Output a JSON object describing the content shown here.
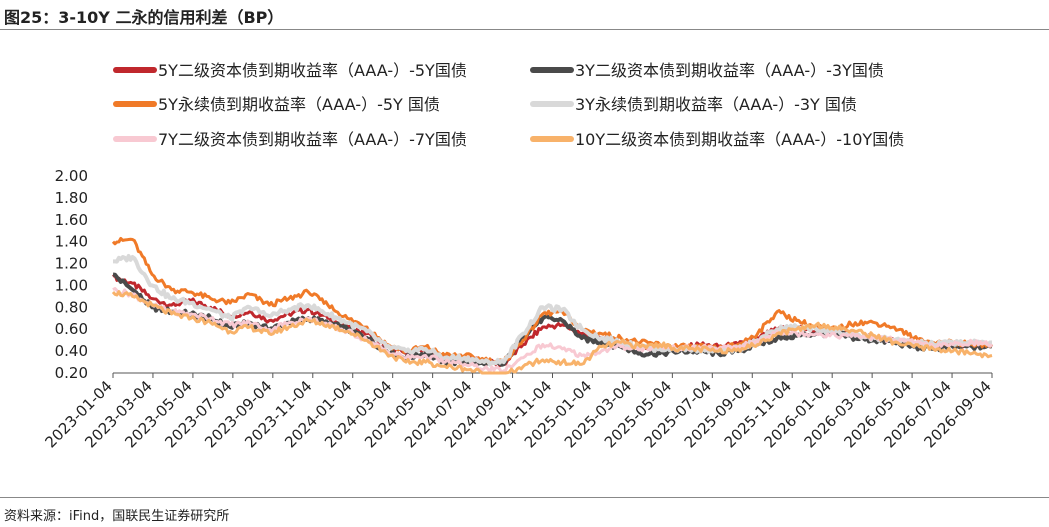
{
  "header": {
    "title": "图25：3-10Y 二永的信用利差（BP）"
  },
  "footer": {
    "source": "资料来源：iFind，国联民生证券研究所"
  },
  "chart_data": {
    "type": "line",
    "title": "图25：3-10Y 二永的信用利差（BP）",
    "xlabel": "",
    "ylabel": "",
    "ylim": [
      0.2,
      2.0
    ],
    "yticks": [
      "2.00",
      "1.80",
      "1.60",
      "1.40",
      "1.20",
      "1.00",
      "0.80",
      "0.60",
      "0.40",
      "0.20"
    ],
    "xticks": [
      "2023-01-04",
      "2023-03-04",
      "2023-05-04",
      "2023-07-04",
      "2023-09-04",
      "2023-11-04",
      "2024-01-04",
      "2024-03-04",
      "2024-05-04",
      "2024-07-04",
      "2024-09-04",
      "2024-11-04",
      "2025-01-04",
      "2025-03-04",
      "2025-05-04",
      "2025-07-04",
      "2025-09-04",
      "2025-11-04",
      "2026-01-04",
      "2026-03-04",
      "2026-05-04",
      "2026-07-04",
      "2026-09-04"
    ],
    "legend_position": "top",
    "series": [
      {
        "name": "5Y二级资本债到期收益率（AAA-）-5Y国债",
        "color": "#c0282d",
        "width": 3,
        "values": [
          1.08,
          1.02,
          0.88,
          0.82,
          0.86,
          0.8,
          0.72,
          0.76,
          0.68,
          0.74,
          0.78,
          0.7,
          0.62,
          0.56,
          0.44,
          0.38,
          0.42,
          0.34,
          0.34,
          0.3,
          0.28,
          0.46,
          0.62,
          0.64,
          0.56,
          0.52,
          0.48,
          0.44,
          0.42,
          0.42,
          0.46,
          0.44,
          0.46,
          0.52,
          0.6,
          0.62,
          0.58,
          0.56,
          0.54,
          0.52,
          0.5,
          0.48,
          0.46,
          0.46,
          0.46,
          0.46
        ]
      },
      {
        "name": "3Y二级资本债到期收益率（AAA-）-3Y国债",
        "color": "#4a4a4a",
        "width": 4,
        "values": [
          1.1,
          0.96,
          0.8,
          0.76,
          0.74,
          0.7,
          0.62,
          0.66,
          0.6,
          0.66,
          0.7,
          0.66,
          0.6,
          0.52,
          0.4,
          0.34,
          0.38,
          0.3,
          0.3,
          0.28,
          0.28,
          0.54,
          0.7,
          0.68,
          0.52,
          0.48,
          0.44,
          0.38,
          0.38,
          0.4,
          0.4,
          0.38,
          0.4,
          0.46,
          0.52,
          0.54,
          0.56,
          0.56,
          0.52,
          0.5,
          0.48,
          0.44,
          0.42,
          0.44,
          0.44,
          0.44
        ]
      },
      {
        "name": "5Y永续债到期收益率（AAA-）-5Y 国债",
        "color": "#f07a28",
        "width": 3,
        "values": [
          1.4,
          1.42,
          1.1,
          0.96,
          0.94,
          0.88,
          0.84,
          0.92,
          0.82,
          0.88,
          0.94,
          0.82,
          0.7,
          0.62,
          0.46,
          0.4,
          0.44,
          0.36,
          0.36,
          0.32,
          0.3,
          0.5,
          0.74,
          0.76,
          0.6,
          0.56,
          0.52,
          0.48,
          0.46,
          0.44,
          0.44,
          0.42,
          0.46,
          0.56,
          0.76,
          0.68,
          0.62,
          0.6,
          0.66,
          0.66,
          0.62,
          0.52,
          0.48,
          0.48,
          0.46,
          0.46
        ]
      },
      {
        "name": "3Y永续债到期收益率（AAA-）-3Y 国债",
        "color": "#d9d9d9",
        "width": 4,
        "values": [
          1.22,
          1.26,
          1.0,
          0.88,
          0.84,
          0.78,
          0.7,
          0.8,
          0.72,
          0.78,
          0.82,
          0.74,
          0.66,
          0.58,
          0.44,
          0.4,
          0.42,
          0.34,
          0.34,
          0.3,
          0.3,
          0.56,
          0.8,
          0.78,
          0.6,
          0.52,
          0.48,
          0.44,
          0.42,
          0.42,
          0.42,
          0.4,
          0.42,
          0.5,
          0.6,
          0.62,
          0.6,
          0.58,
          0.54,
          0.52,
          0.5,
          0.48,
          0.46,
          0.48,
          0.48,
          0.48
        ]
      },
      {
        "name": "7Y二级资本债到期收益率（AAA-）-7Y国债",
        "color": "#f8c9d2",
        "width": 3,
        "values": [
          0.96,
          0.92,
          0.82,
          0.76,
          0.74,
          0.7,
          0.64,
          0.66,
          0.6,
          0.66,
          0.7,
          0.64,
          0.58,
          0.5,
          0.4,
          0.34,
          0.36,
          0.3,
          0.28,
          0.24,
          0.22,
          0.34,
          0.46,
          0.42,
          0.36,
          0.4,
          0.44,
          0.42,
          0.44,
          0.42,
          0.44,
          0.42,
          0.44,
          0.48,
          0.58,
          0.56,
          0.56,
          0.54,
          0.54,
          0.52,
          0.5,
          0.48,
          0.44,
          0.46,
          0.48,
          0.46
        ]
      },
      {
        "name": "10Y二级资本债到期收益率（AAA-）-10Y国债",
        "color": "#f8b26a",
        "width": 3,
        "values": [
          0.94,
          0.9,
          0.82,
          0.74,
          0.7,
          0.66,
          0.58,
          0.62,
          0.56,
          0.62,
          0.68,
          0.64,
          0.58,
          0.5,
          0.38,
          0.3,
          0.3,
          0.26,
          0.24,
          0.2,
          0.18,
          0.26,
          0.32,
          0.3,
          0.28,
          0.44,
          0.48,
          0.44,
          0.46,
          0.42,
          0.42,
          0.4,
          0.42,
          0.46,
          0.56,
          0.6,
          0.64,
          0.62,
          0.58,
          0.54,
          0.48,
          0.44,
          0.42,
          0.4,
          0.38,
          0.36
        ]
      }
    ]
  }
}
